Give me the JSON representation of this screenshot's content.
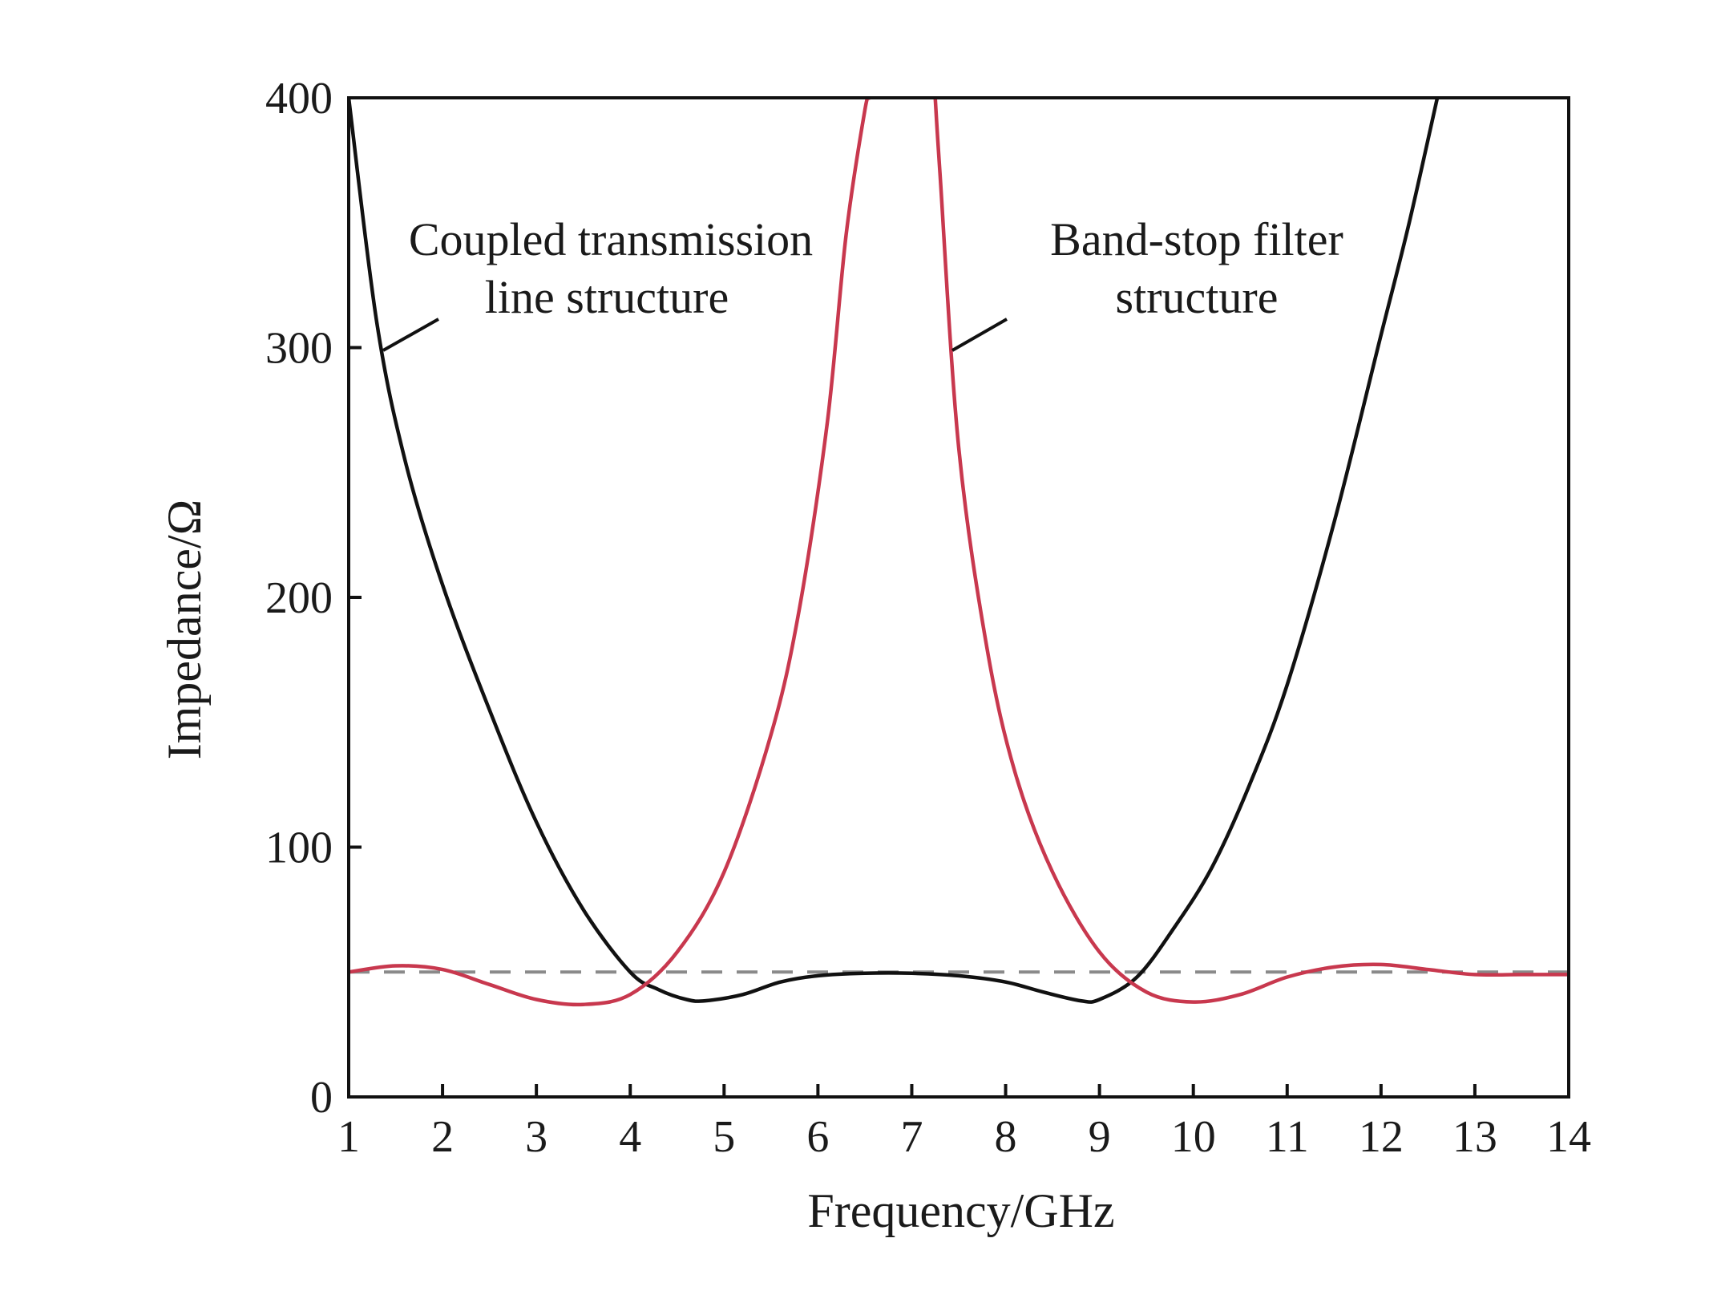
{
  "chart_data": {
    "type": "line",
    "title": "",
    "xlabel": "Frequency/GHz",
    "ylabel": "Impedance/Ω",
    "xlim": [
      1,
      14
    ],
    "ylim": [
      0,
      400
    ],
    "xticks": [
      "1",
      "2",
      "3",
      "4",
      "5",
      "6",
      "7",
      "8",
      "9",
      "10",
      "11",
      "12",
      "13",
      "14"
    ],
    "yticks": [
      "0",
      "100",
      "200",
      "300",
      "400"
    ],
    "grid": false,
    "legend": "none",
    "reference_line": {
      "y": 50,
      "style": "dashed",
      "color": "#8a8a8a"
    },
    "annotations": [
      {
        "lines": [
          "Coupled transmission",
          "line structure"
        ],
        "series": "black"
      },
      {
        "lines": [
          "Band-stop filter",
          "structure"
        ],
        "series": "red"
      }
    ],
    "series": [
      {
        "color": "#111111",
        "x": [
          1.0,
          1.3,
          1.6,
          2.0,
          2.5,
          3.0,
          3.5,
          4.0,
          4.3,
          4.6,
          4.8,
          5.2,
          5.6,
          6.0,
          6.5,
          7.0,
          7.5,
          8.0,
          8.4,
          8.8,
          9.0,
          9.4,
          9.8,
          10.2,
          10.6,
          11.0,
          11.5,
          12.0,
          12.3,
          12.6
        ],
        "y": [
          400,
          310,
          255,
          205,
          155,
          110,
          75,
          50,
          43,
          39,
          38.5,
          41,
          46,
          48.5,
          49.5,
          49.5,
          48.5,
          46,
          42,
          38.5,
          39,
          48,
          68,
          92,
          125,
          165,
          230,
          305,
          350,
          400
        ]
      },
      {
        "color": "#c8384e",
        "x": [
          1.0,
          1.5,
          2.0,
          2.5,
          3.0,
          3.5,
          4.0,
          4.5,
          5.0,
          5.5,
          5.8,
          6.1,
          6.3,
          6.5,
          6.55,
          null,
          7.25,
          7.3,
          7.5,
          7.8,
          8.1,
          8.5,
          9.0,
          9.5,
          10.0,
          10.5,
          11.0,
          11.5,
          12.0,
          12.5,
          13.0,
          13.5,
          14.0
        ],
        "y": [
          50,
          52.5,
          51,
          45,
          39,
          37,
          41,
          58,
          90,
          145,
          195,
          270,
          345,
          395,
          400,
          null,
          400,
          370,
          260,
          180,
          130,
          90,
          58,
          42,
          38,
          41,
          48,
          52,
          53,
          51,
          49,
          49,
          49
        ]
      }
    ]
  }
}
